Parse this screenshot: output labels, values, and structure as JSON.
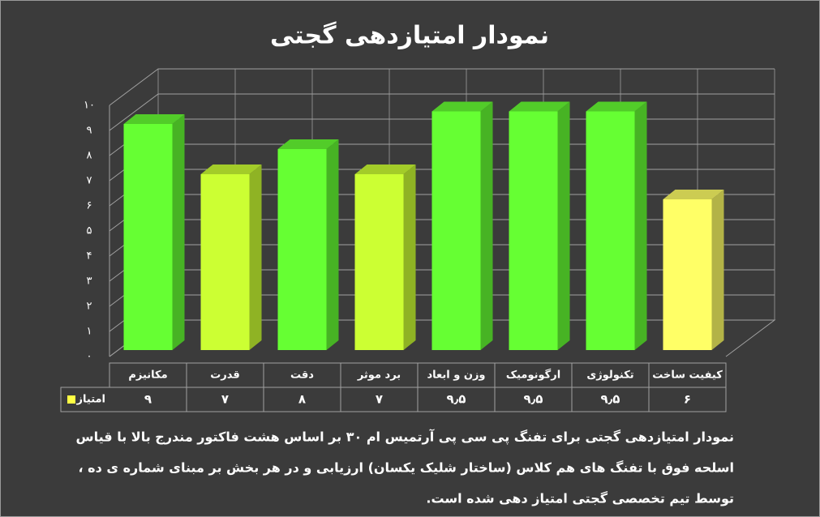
{
  "chart_data": {
    "type": "bar3d",
    "title": "نمودار امتیازدهی گجتی",
    "categories": [
      "مکانیزم",
      "قدرت",
      "دقت",
      "برد موثر",
      "وزن و ابعاد",
      "ارگونومیک",
      "تکنولوژی",
      "کیفیت ساخت"
    ],
    "series": [
      {
        "name": "امتیاز",
        "color": "#ffff44",
        "colors": [
          "#66ff33",
          "#ccff33",
          "#66ff33",
          "#ccff33",
          "#66ff33",
          "#66ff33",
          "#66ff33",
          "#ffff66"
        ],
        "values": [
          9,
          7,
          8,
          7,
          9.5,
          9.5,
          9.5,
          6
        ],
        "value_labels": [
          "۹",
          "۷",
          "۸",
          "۷",
          "۹٫۵",
          "۹٫۵",
          "۹٫۵",
          "۶"
        ]
      }
    ],
    "ylim": [
      0,
      10
    ],
    "yticks": [
      {
        "value": 0,
        "label": "۰"
      },
      {
        "value": 1,
        "label": "۱"
      },
      {
        "value": 2,
        "label": "۲"
      },
      {
        "value": 3,
        "label": "۳"
      },
      {
        "value": 4,
        "label": "۴"
      },
      {
        "value": 5,
        "label": "۵"
      },
      {
        "value": 6,
        "label": "۶"
      },
      {
        "value": 7,
        "label": "۷"
      },
      {
        "value": 8,
        "label": "۸"
      },
      {
        "value": 9,
        "label": "۹"
      },
      {
        "value": 10,
        "label": "۱۰"
      }
    ],
    "grid": true,
    "caption": [
      "نمودار امتیازدهی گجتی برای تفنگ پی سی پی آرتمیس ام ۳۰ بر اساس هشت فاکتور مندرج بالا با قیاس",
      "اسلحه فوق با تفنگ های هم کلاس (ساختار شلیک یکسان) ارزیابی و در هر بخش بر مبنای شماره ی ده ،",
      "توسط تیم تخصصی گجتی امتیاز دهی شده است."
    ]
  }
}
